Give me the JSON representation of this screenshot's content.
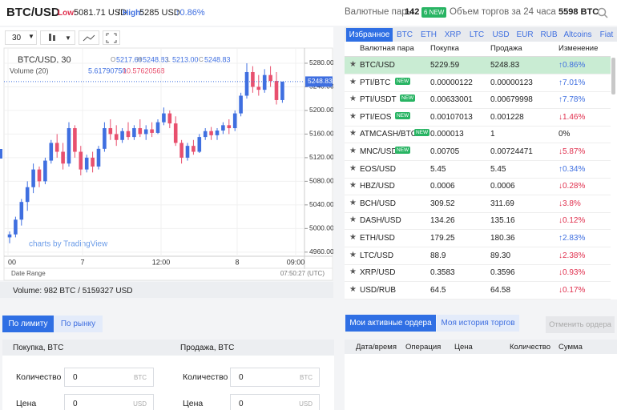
{
  "header": {
    "pair": "BTC/USD",
    "low_label": "Low:",
    "low": "5081.71 USD",
    "sep": "/",
    "high_label": "High:",
    "high": "5285 USD",
    "change": "↑0.86%",
    "pairs_label": "Валютные пары",
    "pairs_count": "142",
    "new_badge": "6 NEW",
    "volume_label": "Объем торгов за 24 часа",
    "volume": "5598 BTC"
  },
  "toolbar": {
    "interval": "30"
  },
  "chart_legend": {
    "symbol": "BTC/USD, 30",
    "o_label": "O",
    "open": "5217.60",
    "h_label": "H",
    "high": "5248.83",
    "l_label": "L",
    "low": "5213.00",
    "c_label": "C",
    "close": "5248.83",
    "volume_label": "Volume (20)",
    "volume_1": "5.61790750",
    "volume_2": "10.57620568"
  },
  "chart_data": {
    "type": "candlestick",
    "candles": [
      [
        4985,
        4995,
        4975,
        4990
      ],
      [
        4990,
        5020,
        4985,
        5015
      ],
      [
        5015,
        5050,
        5005,
        5045
      ],
      [
        5045,
        5080,
        5030,
        5070
      ],
      [
        5070,
        5110,
        5060,
        5100
      ],
      [
        5100,
        5105,
        5070,
        5080
      ],
      [
        5080,
        5120,
        5075,
        5115
      ],
      [
        5115,
        5150,
        5110,
        5145
      ],
      [
        5145,
        5160,
        5120,
        5130
      ],
      [
        5130,
        5145,
        5100,
        5110
      ],
      [
        5110,
        5180,
        5105,
        5170
      ],
      [
        5170,
        5175,
        5120,
        5130
      ],
      [
        5130,
        5140,
        5090,
        5100
      ],
      [
        5100,
        5125,
        5095,
        5120
      ],
      [
        5120,
        5130,
        5095,
        5105
      ],
      [
        5105,
        5140,
        5100,
        5135
      ],
      [
        5135,
        5180,
        5130,
        5170
      ],
      [
        5170,
        5185,
        5150,
        5160
      ],
      [
        5160,
        5175,
        5140,
        5150
      ],
      [
        5150,
        5170,
        5145,
        5165
      ],
      [
        5165,
        5180,
        5150,
        5155
      ],
      [
        5155,
        5175,
        5150,
        5170
      ],
      [
        5170,
        5185,
        5155,
        5160
      ],
      [
        5160,
        5175,
        5150,
        5168
      ],
      [
        5168,
        5180,
        5155,
        5162
      ],
      [
        5162,
        5185,
        5160,
        5180
      ],
      [
        5180,
        5205,
        5175,
        5195
      ],
      [
        5195,
        5200,
        5170,
        5178
      ],
      [
        5178,
        5190,
        5140,
        5145
      ],
      [
        5145,
        5150,
        5110,
        5120
      ],
      [
        5120,
        5145,
        5115,
        5140
      ],
      [
        5140,
        5150,
        5125,
        5130
      ],
      [
        5130,
        5160,
        5128,
        5155
      ],
      [
        5155,
        5170,
        5150,
        5165
      ],
      [
        5165,
        5172,
        5150,
        5158
      ],
      [
        5158,
        5170,
        5150,
        5166
      ],
      [
        5166,
        5180,
        5160,
        5175
      ],
      [
        5175,
        5185,
        5160,
        5170
      ],
      [
        5170,
        5200,
        5165,
        5195
      ],
      [
        5195,
        5230,
        5190,
        5225
      ],
      [
        5225,
        5280,
        5220,
        5265
      ],
      [
        5265,
        5275,
        5230,
        5240
      ],
      [
        5240,
        5260,
        5225,
        5235
      ],
      [
        5235,
        5270,
        5230,
        5260
      ],
      [
        5260,
        5275,
        5240,
        5250
      ],
      [
        5250,
        5265,
        5210,
        5217.6
      ],
      [
        5217.6,
        5248.83,
        5213,
        5248.83
      ]
    ],
    "up_color": "#3f6fe0",
    "down_color": "#e8506e",
    "ylim": [
      4953,
      5303
    ],
    "yticks": [
      {
        "value": 4960,
        "label": "4960.00"
      },
      {
        "value": 5000,
        "label": "5000.00"
      },
      {
        "value": 5040,
        "label": "5040.00"
      },
      {
        "value": 5080,
        "label": "5080.00"
      },
      {
        "value": 5120,
        "label": "5120.00"
      },
      {
        "value": 5160,
        "label": "5160.00"
      },
      {
        "value": 5200,
        "label": "5200.00"
      },
      {
        "value": 5240,
        "label": "5240.00"
      },
      {
        "value": 5280,
        "label": "5280.00"
      }
    ],
    "last_price": {
      "value": 5248.83,
      "label": "5248.83"
    },
    "time_labels": [
      "00",
      "7",
      "12:00",
      "8",
      "09:00"
    ],
    "date_range": "Date Range",
    "clock": "07:50:27 (UTC)",
    "watermark": "charts by TradingView"
  },
  "volume_bar": "Volume: 982 BTC / 5159327 USD",
  "market": {
    "tabs": [
      "Избранное",
      "BTC",
      "ETH",
      "XRP",
      "LTC",
      "USD",
      "EUR",
      "RUB",
      "Altcoins",
      "Fiat"
    ],
    "columns": [
      "Валютная пара",
      "Покупка",
      "Продажа",
      "Изменение"
    ],
    "rows": [
      {
        "pair": "BTC/USD",
        "buy": "5229.59",
        "sell": "5248.83",
        "change": "↑0.86%"
      },
      {
        "pair": "PTI/BTC",
        "badge": "NEW",
        "buy": "0.00000122",
        "sell": "0.00000123",
        "change": "↑7.01%"
      },
      {
        "pair": "PTI/USDT",
        "badge": "NEW",
        "buy": "0.00633001",
        "sell": "0.00679998",
        "change": "↑7.78%"
      },
      {
        "pair": "PTI/EOS",
        "badge": "NEW",
        "buy": "0.00107013",
        "sell": "0.001228",
        "change": "↓1.46%"
      },
      {
        "pair": "ATMCASH/BTC",
        "badge": "NEW",
        "buy": "0.000013",
        "sell": "1",
        "change": "0%"
      },
      {
        "pair": "MNC/USD",
        "badge": "NEW",
        "buy": "0.00705",
        "sell": "0.00724471",
        "change": "↓5.87%"
      },
      {
        "pair": "EOS/USD",
        "buy": "5.45",
        "sell": "5.45",
        "change": "↑0.34%"
      },
      {
        "pair": "HBZ/USD",
        "buy": "0.0006",
        "sell": "0.0006",
        "change": "↓0.28%"
      },
      {
        "pair": "BCH/USD",
        "buy": "309.52",
        "sell": "311.69",
        "change": "↓3.8%"
      },
      {
        "pair": "DASH/USD",
        "buy": "134.26",
        "sell": "135.16",
        "change": "↓0.12%"
      },
      {
        "pair": "ETH/USD",
        "buy": "179.25",
        "sell": "180.36",
        "change": "↑2.83%"
      },
      {
        "pair": "LTC/USD",
        "buy": "88.9",
        "sell": "89.30",
        "change": "↓2.38%"
      },
      {
        "pair": "XRP/USD",
        "buy": "0.3583",
        "sell": "0.3596",
        "change": "↓0.93%"
      },
      {
        "pair": "USD/RUB",
        "buy": "64.5",
        "sell": "64.58",
        "change": "↓0.17%"
      }
    ]
  },
  "order_form": {
    "tab_limit": "По лимиту",
    "tab_market": "По рынку",
    "buy_title": "Покупка, BTC",
    "sell_title": "Продажа, BTC",
    "amount_label": "Количество",
    "price_label": "Цена",
    "amount_value": "0",
    "price_value": "0",
    "amount_unit": "BTC",
    "price_unit": "USD"
  },
  "orders": {
    "tab_active": "Мои активные ордера",
    "tab_history": "Моя история торгов",
    "cancel": "Отменить ордера",
    "columns": [
      "Дата/время",
      "Операция",
      "Цена",
      "Количество",
      "Сумма"
    ]
  }
}
